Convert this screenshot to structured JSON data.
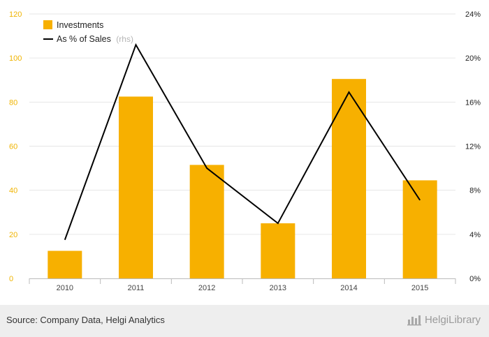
{
  "chart_data": {
    "type": "bar",
    "categories": [
      "2010",
      "2011",
      "2012",
      "2013",
      "2014",
      "2015"
    ],
    "series": [
      {
        "name": "Investments",
        "type": "bar",
        "axis": "left",
        "color": "#f7b000",
        "values": [
          12.5,
          82.5,
          51.5,
          25,
          90.5,
          44.5
        ]
      },
      {
        "name": "As % of Sales",
        "type": "line",
        "axis": "right",
        "color": "#000000",
        "values": [
          3.5,
          21.2,
          10.0,
          5.0,
          16.9,
          7.1
        ]
      }
    ],
    "legend_rhs_note": "(rhs)",
    "left_axis": {
      "ticks": [
        "0",
        "20",
        "40",
        "60",
        "80",
        "100",
        "120"
      ],
      "range": [
        0,
        120
      ]
    },
    "right_axis": {
      "ticks": [
        "0%",
        "4%",
        "8%",
        "12%",
        "16%",
        "20%",
        "24%"
      ],
      "range": [
        0,
        24
      ]
    },
    "grid": true,
    "legend_position": "top-left"
  },
  "footer": {
    "source": "Source: Company Data, Helgi Analytics",
    "brand": "HelgiLibrary"
  }
}
